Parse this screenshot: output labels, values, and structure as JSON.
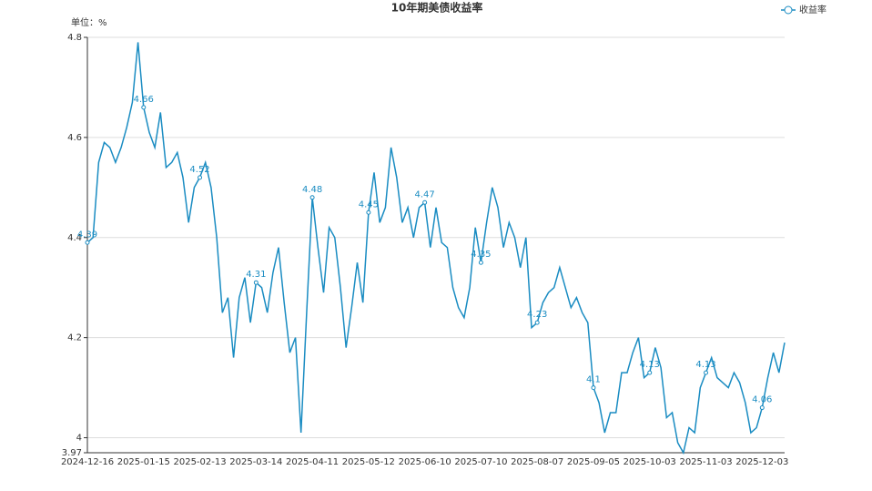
{
  "chart_data": {
    "type": "line",
    "title": "10年期美债收益率",
    "unit_label": "单位：%",
    "categories": [
      "2024-12-16",
      null,
      null,
      null,
      null,
      null,
      null,
      null,
      null,
      null,
      "2025-01-15",
      null,
      null,
      null,
      null,
      null,
      null,
      null,
      null,
      null,
      "2025-02-13",
      null,
      null,
      null,
      null,
      null,
      null,
      null,
      null,
      null,
      "2025-03-14",
      null,
      null,
      null,
      null,
      null,
      null,
      null,
      null,
      null,
      "2025-04-11",
      null,
      null,
      null,
      null,
      null,
      null,
      null,
      null,
      null,
      "2025-05-12",
      null,
      null,
      null,
      null,
      null,
      null,
      null,
      null,
      null,
      "2025-06-10",
      null,
      null,
      null,
      null,
      null,
      null,
      null,
      null,
      null,
      "2025-07-10",
      null,
      null,
      null,
      null,
      null,
      null,
      null,
      null,
      null,
      "2025-08-07",
      null,
      null,
      null,
      null,
      null,
      null,
      null,
      null,
      null,
      "2025-09-05",
      null,
      null,
      null,
      null,
      null,
      null,
      null,
      null,
      null,
      "2025-10-03",
      null,
      null,
      null,
      null,
      null,
      null,
      null,
      null,
      null,
      "2025-11-03",
      null,
      null,
      null,
      null,
      null,
      null,
      null,
      null,
      null,
      "2025-12-03",
      null,
      null,
      null,
      null
    ],
    "series": [
      {
        "name": "收益率",
        "color": "#1a8cc2",
        "values": [
          4.39,
          4.4,
          4.55,
          4.59,
          4.58,
          4.55,
          4.58,
          4.62,
          4.67,
          4.79,
          4.66,
          4.61,
          4.58,
          4.65,
          4.54,
          4.55,
          4.57,
          4.52,
          4.43,
          4.5,
          4.52,
          4.55,
          4.5,
          4.4,
          4.25,
          4.28,
          4.16,
          4.28,
          4.32,
          4.23,
          4.31,
          4.3,
          4.25,
          4.33,
          4.38,
          4.27,
          4.17,
          4.2,
          4.01,
          4.25,
          4.48,
          4.38,
          4.29,
          4.42,
          4.4,
          4.3,
          4.18,
          4.26,
          4.35,
          4.27,
          4.45,
          4.53,
          4.43,
          4.46,
          4.58,
          4.52,
          4.43,
          4.46,
          4.4,
          4.46,
          4.47,
          4.38,
          4.46,
          4.39,
          4.38,
          4.3,
          4.26,
          4.24,
          4.3,
          4.42,
          4.35,
          4.43,
          4.5,
          4.46,
          4.38,
          4.43,
          4.4,
          4.34,
          4.4,
          4.22,
          4.23,
          4.27,
          4.29,
          4.3,
          4.34,
          4.3,
          4.26,
          4.28,
          4.25,
          4.23,
          4.1,
          4.07,
          4.01,
          4.05,
          4.05,
          4.13,
          4.13,
          4.17,
          4.2,
          4.12,
          4.13,
          4.18,
          4.14,
          4.04,
          4.05,
          3.99,
          3.97,
          4.02,
          4.01,
          4.1,
          4.13,
          4.16,
          4.12,
          4.11,
          4.1,
          4.13,
          4.11,
          4.07,
          4.01,
          4.02,
          4.06,
          4.12,
          4.17,
          4.13,
          4.19
        ]
      }
    ],
    "ylim": [
      3.97,
      4.8
    ],
    "yticks": [
      3.97,
      4,
      4.2,
      4.4,
      4.6,
      4.8
    ],
    "grid": true,
    "legend": "top-right"
  }
}
